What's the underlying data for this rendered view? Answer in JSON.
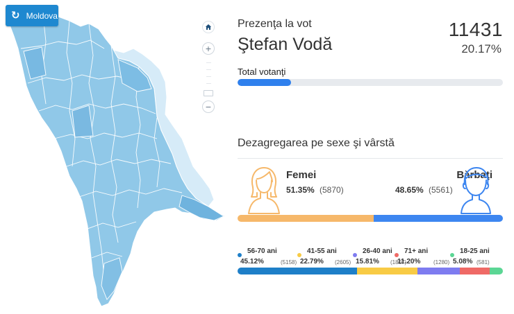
{
  "map": {
    "moldova_button_label": "Moldova",
    "reload_icon": "reload-icon",
    "home_icon": "home-icon",
    "zoom_in_symbol": "+",
    "zoom_out_symbol": "−",
    "colors": {
      "regions_fill": "#90c8e8",
      "region_highlight_fill": "#6fb3de",
      "region_border": "#ffffff",
      "transnistria_fill": "#d6ebf8"
    }
  },
  "turnout": {
    "title": "Prezenţa la vot",
    "region": "Ştefan Vodă",
    "total_voters": "11431",
    "percent_text": "20.17%",
    "percent_value": 20.17,
    "bar_label": "Total votanţi",
    "bar_color": "#2f80ed",
    "track_color": "#e7eaee"
  },
  "breakdown": {
    "title": "Dezagregarea pe sexe şi vârstă",
    "women": {
      "label": "Femei",
      "percent": "51.35%",
      "count": "(5870)",
      "value": 51.35,
      "color": "#f6b86a",
      "icon": "woman-icon"
    },
    "men": {
      "label": "Bărbaţi",
      "percent": "48.65%",
      "count": "(5561)",
      "value": 48.65,
      "color": "#3d86f0",
      "icon": "man-icon"
    },
    "age_groups": [
      {
        "label": "56-70 ani",
        "percent": "45.12%",
        "count": "(5158)",
        "value": 45.12,
        "color": "#1e7fc8"
      },
      {
        "label": "41-55 ani",
        "percent": "22.79%",
        "count": "(2605)",
        "value": 22.79,
        "color": "#f8cb45"
      },
      {
        "label": "26-40 ani",
        "percent": "15.81%",
        "count": "(1807)",
        "value": 15.81,
        "color": "#7e7cf0"
      },
      {
        "label": "71+ ani",
        "percent": "11.20%",
        "count": "(1280)",
        "value": 11.2,
        "color": "#ef6a66"
      },
      {
        "label": "18-25 ani",
        "percent": "5.08%",
        "count": "(581)",
        "value": 5.08,
        "color": "#5bd694"
      }
    ]
  }
}
